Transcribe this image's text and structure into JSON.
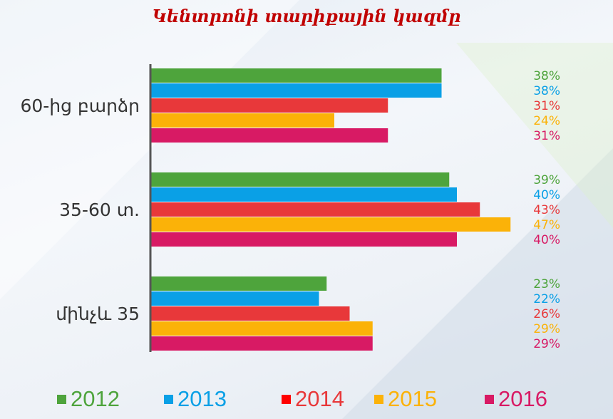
{
  "chart_data": {
    "type": "bar",
    "orientation": "horizontal",
    "title": "Կենտրոնի տարիքային կազմը",
    "categories": [
      "60-ից բարձր",
      "35-60 տ.",
      "մինչև 35"
    ],
    "series": [
      {
        "name": "2012",
        "color": "#4ea43c",
        "values": [
          38,
          39,
          23
        ],
        "labels": [
          "38%",
          "39%",
          "23%"
        ]
      },
      {
        "name": "2013",
        "color": "#0aa0e6",
        "values": [
          38,
          40,
          22
        ],
        "labels": [
          "38%",
          "40%",
          "22%"
        ]
      },
      {
        "name": "2014",
        "color": "#e8383a",
        "values": [
          31,
          43,
          26
        ],
        "labels": [
          "31%",
          "43%",
          "26%"
        ]
      },
      {
        "name": "2015",
        "color": "#fbb208",
        "values": [
          24,
          47,
          29
        ],
        "labels": [
          "24%",
          "47%",
          "29%"
        ]
      },
      {
        "name": "2016",
        "color": "#d81a64",
        "values": [
          31,
          40,
          29
        ],
        "labels": [
          "31%",
          "40%",
          "29%"
        ]
      }
    ],
    "xlim": [
      0,
      50
    ],
    "grid": false,
    "legend_position": "bottom"
  },
  "legend": {
    "entries": [
      {
        "label": "2012",
        "swatch_color": "#4ea43c",
        "text_color": "#4ea43c"
      },
      {
        "label": "2013",
        "swatch_color": "#0aa0e6",
        "text_color": "#0aa0e6"
      },
      {
        "label": "2014",
        "swatch_color": "#ff0000",
        "text_color": "#e8383a"
      },
      {
        "label": "2015",
        "swatch_color": "#fbb208",
        "text_color": "#fbb208"
      },
      {
        "label": "2016",
        "swatch_color": "#d81a64",
        "text_color": "#d81a64"
      }
    ]
  },
  "axis_color": "#555555",
  "category_label_color": "#333333"
}
